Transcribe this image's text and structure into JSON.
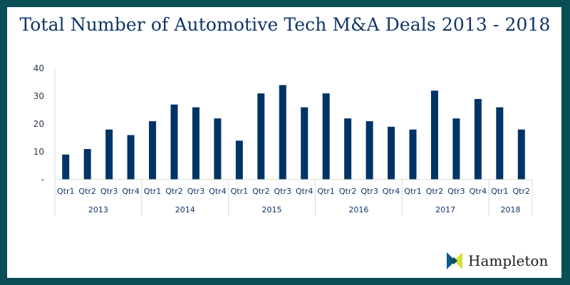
{
  "chart_data": {
    "type": "bar",
    "title": "Total Number of Automotive Tech M&A Deals 2013 - 2018",
    "xlabel": "",
    "ylabel": "",
    "ylim": [
      0,
      40
    ],
    "yticks": [
      0,
      10,
      20,
      30,
      40
    ],
    "ytick_labels": [
      "-",
      "10",
      "20",
      "30",
      "40"
    ],
    "grid": false,
    "legend": "none",
    "groups": [
      {
        "label": "2013",
        "categories": [
          "Qtr1",
          "Qtr2",
          "Qtr3",
          "Qtr4"
        ],
        "values": [
          9,
          11,
          18,
          16
        ]
      },
      {
        "label": "2014",
        "categories": [
          "Qtr1",
          "Qtr2",
          "Qtr3",
          "Qtr4"
        ],
        "values": [
          21,
          27,
          26,
          22
        ]
      },
      {
        "label": "2015",
        "categories": [
          "Qtr1",
          "Qtr2",
          "Qtr3",
          "Qtr4"
        ],
        "values": [
          14,
          31,
          34,
          26
        ]
      },
      {
        "label": "2016",
        "categories": [
          "Qtr1",
          "Qtr2",
          "Qtr3",
          "Qtr4"
        ],
        "values": [
          31,
          22,
          21,
          19
        ]
      },
      {
        "label": "2017",
        "categories": [
          "Qtr1",
          "Qtr2",
          "Qtr3",
          "Qtr4"
        ],
        "values": [
          18,
          32,
          22,
          29
        ]
      },
      {
        "label": "2018",
        "categories": [
          "Qtr1",
          "Qtr2"
        ],
        "values": [
          26,
          18
        ]
      }
    ],
    "colors": {
      "bar": "#003366",
      "axis": "#d9d9d9",
      "title": "#0f3468",
      "border": "#0a4f55"
    }
  },
  "branding": {
    "logo_text": "Hampleton",
    "logo_colors": {
      "left": "#0a5a8c",
      "right": "#d7df3b",
      "center": "#0a4f55"
    }
  }
}
